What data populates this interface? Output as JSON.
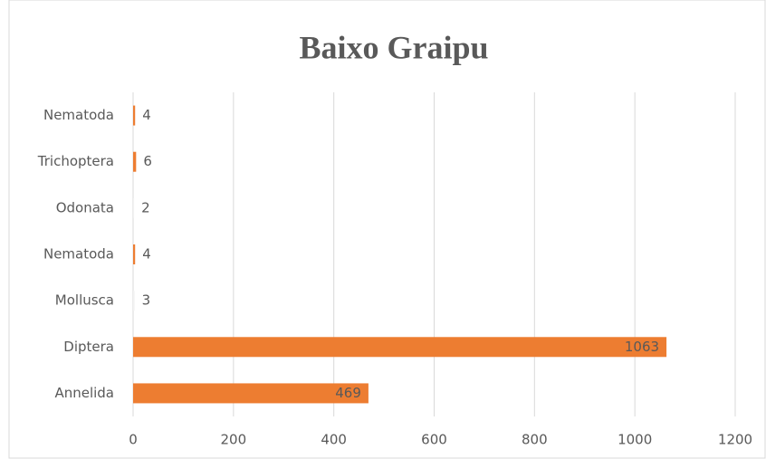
{
  "chart_data": {
    "type": "bar",
    "orientation": "horizontal",
    "title": "Baixo Graipu",
    "categories": [
      "Nematoda",
      "Trichoptera",
      "Odonata",
      "Nematoda",
      "Mollusca",
      "Diptera",
      "Annelida"
    ],
    "values": [
      4,
      6,
      2,
      4,
      3,
      1063,
      469
    ],
    "colors": [
      "#ed7d31",
      "#ed7d31",
      "#f2f2f2",
      "#ed7d31",
      "#f2f2f2",
      "#ed7d31",
      "#ed7d31"
    ],
    "xlim": [
      0,
      1200
    ],
    "xticks": [
      0,
      200,
      400,
      600,
      800,
      1000,
      1200
    ],
    "grid": true
  }
}
